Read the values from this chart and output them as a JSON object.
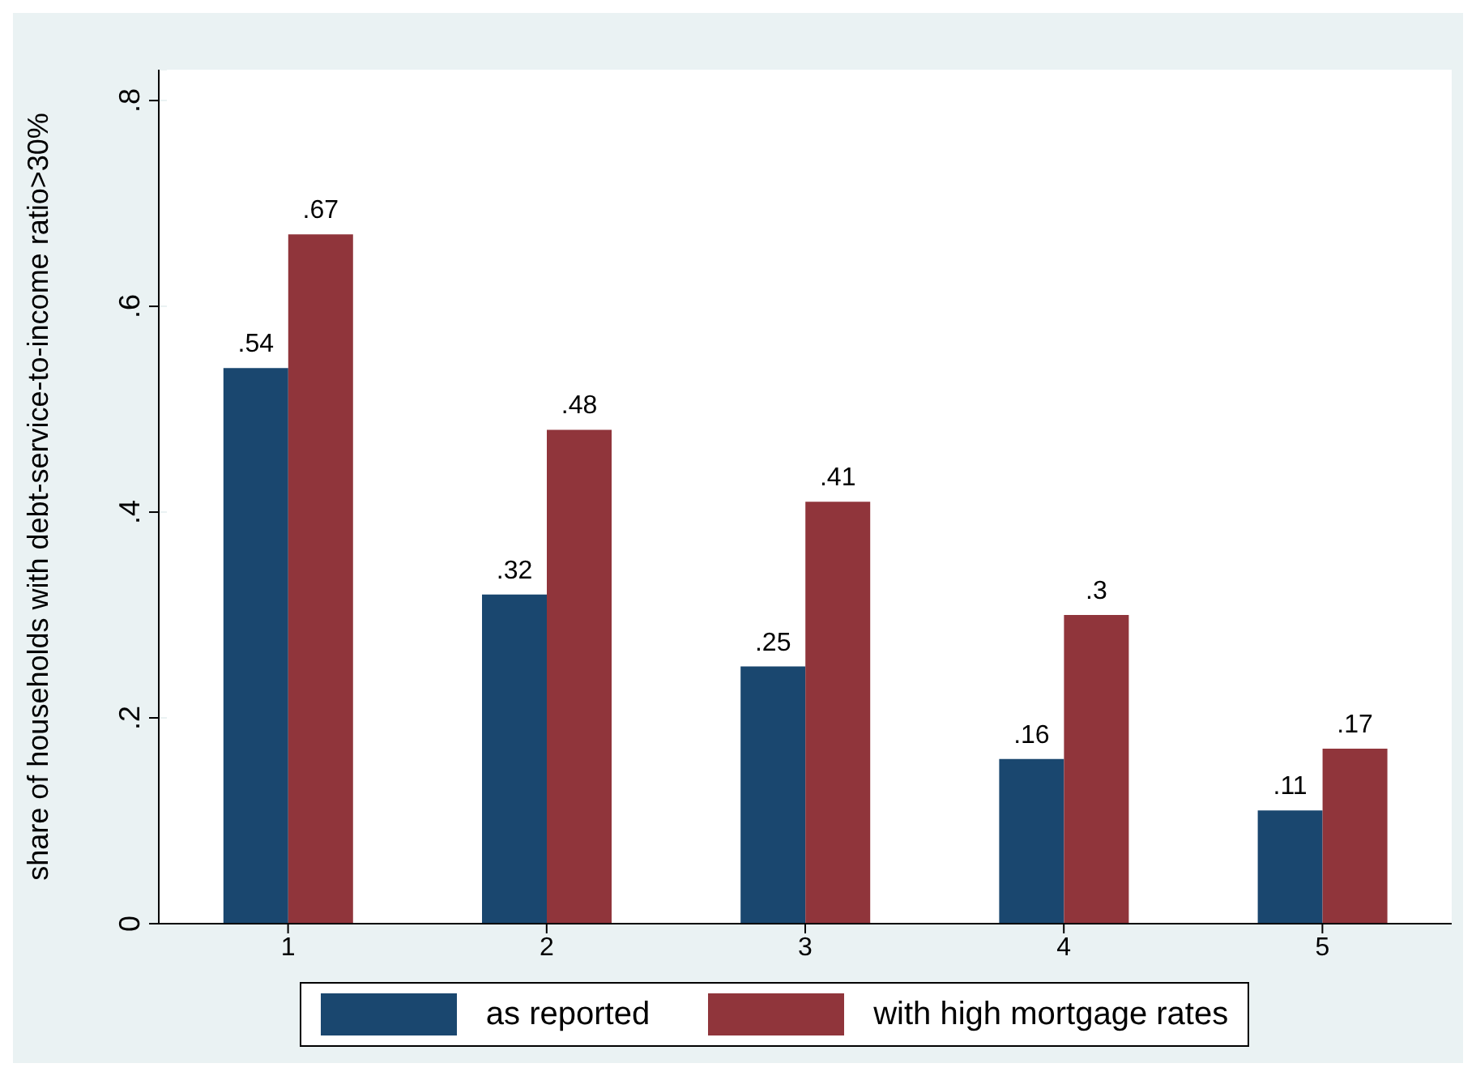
{
  "chart_data": {
    "type": "bar",
    "ylabel": "share of households with debt-service-to-income ratio>30%",
    "categories": [
      "1",
      "2",
      "3",
      "4",
      "5"
    ],
    "series": [
      {
        "name": "as reported",
        "color": "#1a476f",
        "values": [
          0.54,
          0.32,
          0.25,
          0.16,
          0.11
        ],
        "value_labels": [
          ".54",
          ".32",
          ".25",
          ".16",
          ".11"
        ]
      },
      {
        "name": "with high mortgage rates",
        "color": "#90353b",
        "values": [
          0.67,
          0.48,
          0.41,
          0.3,
          0.17
        ],
        "value_labels": [
          ".67",
          ".48",
          ".41",
          ".3",
          ".17"
        ]
      }
    ],
    "ylim": [
      0,
      0.83
    ],
    "yticks": [
      0,
      {
        "value": 0.2,
        "label": ".2"
      },
      {
        "value": 0.4,
        "label": ".4"
      },
      {
        "value": 0.6,
        "label": ".6"
      },
      {
        "value": 0.8,
        "label": ".8"
      }
    ],
    "grid": "y",
    "legend": "bottom"
  }
}
